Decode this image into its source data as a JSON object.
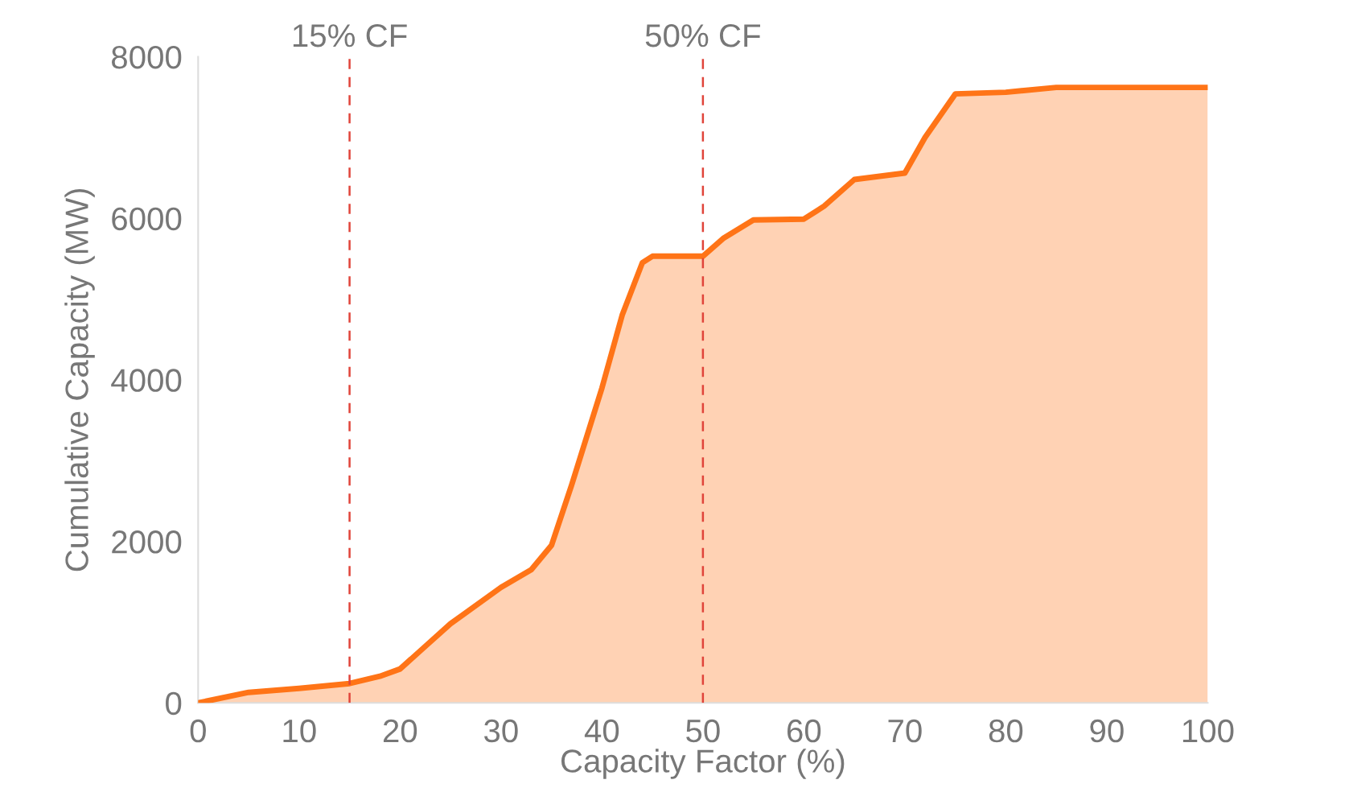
{
  "chart_data": {
    "type": "area",
    "xlabel": "Capacity Factor (%)",
    "ylabel": "Cumulative Capacity (MW)",
    "x": [
      0,
      5,
      10,
      15,
      18,
      20,
      22.5,
      25,
      30,
      33,
      35,
      37,
      40,
      42,
      44,
      45,
      50,
      52,
      55,
      60,
      62,
      65,
      70,
      72,
      75,
      80,
      85,
      100
    ],
    "series": [
      {
        "color": "#ff7417",
        "values": [
          0,
          130,
          180,
          240,
          330,
          420,
          700,
          980,
          1430,
          1650,
          1950,
          2700,
          3900,
          4800,
          5450,
          5530,
          5530,
          5750,
          5980,
          5990,
          6150,
          6480,
          6560,
          7000,
          7540,
          7560,
          7620,
          7620
        ]
      }
    ],
    "xlim": [
      0,
      100
    ],
    "ylim": [
      0,
      8000
    ],
    "xticks": [
      0,
      10,
      20,
      30,
      40,
      50,
      60,
      70,
      80,
      90,
      100
    ],
    "yticks": [
      0,
      2000,
      4000,
      6000,
      8000
    ],
    "ref_lines": [
      {
        "axis": "x",
        "value": 15,
        "label": "15% CF",
        "color": "#e0443a",
        "line_style": "dashed"
      },
      {
        "axis": "x",
        "value": 50,
        "label": "50% CF",
        "color": "#e0443a",
        "line_style": "dashed"
      }
    ],
    "grid": false,
    "legend": false
  }
}
